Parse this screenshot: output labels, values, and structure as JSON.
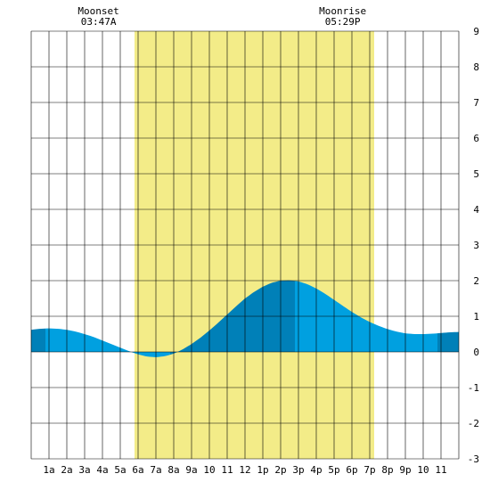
{
  "chart_data": {
    "type": "area",
    "title": "",
    "xlabel": "",
    "ylabel": "",
    "x_tick_labels": [
      "1a",
      "2a",
      "3a",
      "4a",
      "5a",
      "6a",
      "7a",
      "8a",
      "9a",
      "10",
      "11",
      "12",
      "1p",
      "2p",
      "3p",
      "4p",
      "5p",
      "6p",
      "7p",
      "8p",
      "9p",
      "10",
      "11"
    ],
    "x_range_hours": [
      0,
      24
    ],
    "ylim": [
      -3,
      9
    ],
    "y_ticks": [
      "9",
      "8",
      "7",
      "6",
      "5",
      "4",
      "3",
      "2",
      "1",
      "0",
      "-1",
      "-2",
      "-3"
    ],
    "grid": true,
    "daylight": {
      "start_hour": 5.8,
      "end_hour": 19.25,
      "color": "#f3ec88"
    },
    "events": [
      {
        "label": "Moonset",
        "time": "03:47A",
        "hour": 3.78
      },
      {
        "label": "Moonrise",
        "time": "05:29P",
        "hour": 17.48
      }
    ],
    "series": [
      {
        "x": [
          0,
          0.5,
          1,
          1.5,
          2,
          2.5,
          3,
          3.5,
          4,
          4.5,
          5,
          5.5,
          6,
          6.5,
          7,
          7.5,
          8,
          8.5,
          9,
          9.5,
          10,
          10.5,
          11,
          11.5,
          12,
          12.5,
          13,
          13.5,
          14,
          14.5,
          15,
          15.5,
          16,
          16.5,
          17,
          17.5,
          18,
          18.5,
          19,
          19.5,
          20,
          20.5,
          21,
          21.5,
          22,
          22.5,
          23,
          23.5,
          24
        ],
        "values": [
          0.62,
          0.65,
          0.66,
          0.65,
          0.62,
          0.57,
          0.5,
          0.42,
          0.32,
          0.22,
          0.12,
          0.02,
          -0.07,
          -0.13,
          -0.15,
          -0.12,
          -0.05,
          0.07,
          0.22,
          0.4,
          0.6,
          0.82,
          1.05,
          1.28,
          1.5,
          1.68,
          1.83,
          1.94,
          2.0,
          2.01,
          1.98,
          1.9,
          1.78,
          1.63,
          1.46,
          1.29,
          1.12,
          0.97,
          0.84,
          0.73,
          0.64,
          0.57,
          0.52,
          0.5,
          0.5,
          0.51,
          0.53,
          0.55,
          0.56
        ]
      }
    ],
    "colors": {
      "tide_light": "#00a0e0",
      "tide_dark": "#0080b8",
      "grid": "#000000"
    }
  }
}
